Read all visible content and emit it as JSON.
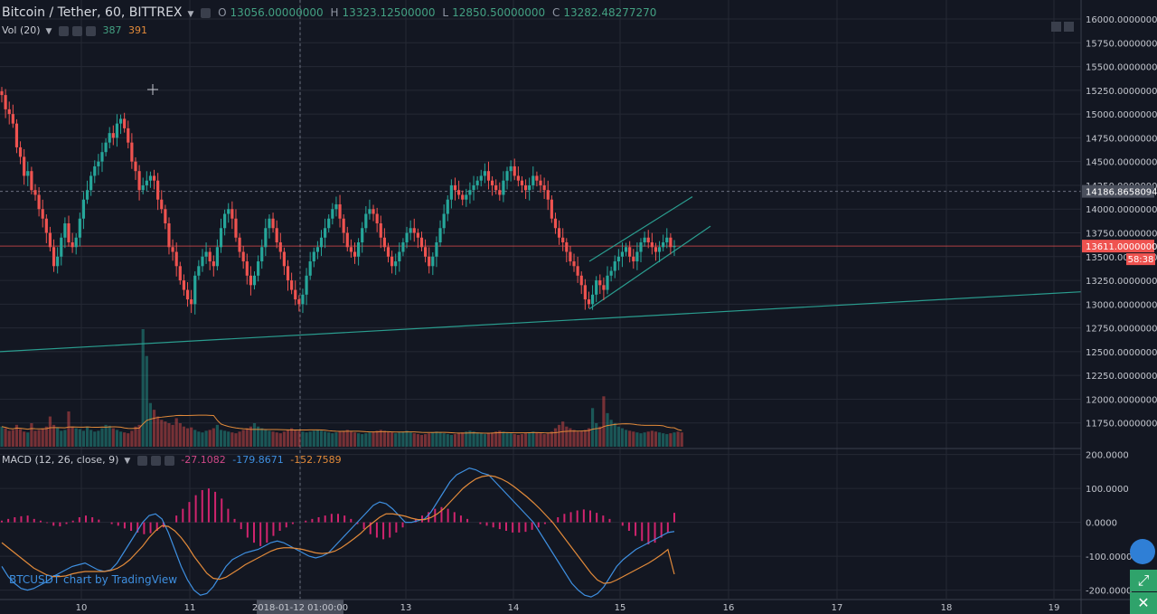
{
  "header": {
    "symbol": "Bitcoin / Tether, 60, BITTREX",
    "ohlc": [
      {
        "label": "O",
        "value": "13056.00000000"
      },
      {
        "label": "H",
        "value": "13323.12500000"
      },
      {
        "label": "L",
        "value": "12850.50000000"
      },
      {
        "label": "C",
        "value": "13282.48277270"
      }
    ],
    "vol_label": "Vol (20)",
    "vol_values": [
      "387",
      "391"
    ]
  },
  "macd_legend": {
    "label": "MACD (12, 26, close, 9)",
    "values": [
      "-27.1082",
      "-179.8671",
      "-152.7589"
    ]
  },
  "watermark": "BTCUSDT chart by TradingView",
  "colors": {
    "background": "#131722",
    "up": "#26a69a",
    "down": "#ef5350",
    "macd_line": "#3e8fe0",
    "signal_line": "#e28a3a",
    "histogram": "#d0246e",
    "trendline": "#2a9d8f"
  },
  "chart_data": [
    {
      "type": "candlestick",
      "title": "Bitcoin / Tether, 60, BITTREX",
      "ylim": [
        11500,
        16200
      ],
      "x_ticks": [
        "10",
        "11",
        "2018-01-12 01:00:00",
        "13",
        "14",
        "15",
        "16",
        "17",
        "18",
        "19"
      ],
      "y_ticks": [
        "16000.00000000",
        "15750.00000000",
        "15500.00000000",
        "15250.00000000",
        "15000.00000000",
        "14750.00000000",
        "14500.00000000",
        "14250.00000000",
        "14000.00000000",
        "13750.00000000",
        "13500.00000000",
        "13250.00000000",
        "13000.00000000",
        "12750.00000000",
        "12500.00000000",
        "12250.00000000",
        "12000.00000000",
        "11750.00000000"
      ],
      "price_labels": {
        "crosshair": "14186.86580944",
        "last_price": "13611.00000001",
        "countdown": "58:38"
      },
      "crosshair_price": 14186.8658,
      "last_price": 13611,
      "close_series": [
        15200,
        15050,
        15000,
        14900,
        14650,
        14550,
        14350,
        14400,
        14200,
        14150,
        14000,
        13900,
        13750,
        13600,
        13400,
        13500,
        13700,
        13850,
        13650,
        13600,
        13700,
        13900,
        14100,
        14200,
        14350,
        14450,
        14500,
        14600,
        14700,
        14800,
        14750,
        14900,
        14950,
        14850,
        14700,
        14500,
        14400,
        14200,
        14250,
        14300,
        14350,
        14300,
        14100,
        14000,
        13850,
        13600,
        13550,
        13400,
        13250,
        13150,
        13050,
        13000,
        13300,
        13400,
        13500,
        13550,
        13450,
        13400,
        13600,
        13800,
        13950,
        14000,
        13900,
        13700,
        13550,
        13450,
        13300,
        13200,
        13300,
        13450,
        13600,
        13800,
        13900,
        13800,
        13650,
        13550,
        13400,
        13250,
        13150,
        13050,
        13000,
        13100,
        13300,
        13450,
        13550,
        13600,
        13700,
        13800,
        13900,
        14000,
        14050,
        13900,
        13750,
        13600,
        13550,
        13500,
        13650,
        13800,
        13950,
        14000,
        13950,
        13850,
        13700,
        13600,
        13500,
        13400,
        13450,
        13550,
        13650,
        13750,
        13800,
        13750,
        13700,
        13600,
        13500,
        13400,
        13500,
        13650,
        13800,
        13950,
        14100,
        14250,
        14200,
        14150,
        14100,
        14150,
        14200,
        14250,
        14300,
        14350,
        14400,
        14300,
        14250,
        14200,
        14150,
        14300,
        14400,
        14450,
        14350,
        14300,
        14250,
        14200,
        14250,
        14350,
        14300,
        14250,
        14200,
        14100,
        13900,
        13800,
        13700,
        13650,
        13550,
        13450,
        13400,
        13300,
        13200,
        13050,
        13000,
        13100,
        13250,
        13200,
        13150,
        13300,
        13350,
        13450,
        13500,
        13550,
        13600,
        13500,
        13450,
        13550,
        13650,
        13700,
        13650,
        13600,
        13550,
        13600,
        13650,
        13700,
        13600,
        13611
      ],
      "volume": [
        120,
        110,
        95,
        100,
        130,
        105,
        90,
        85,
        140,
        95,
        100,
        110,
        120,
        180,
        130,
        115,
        95,
        100,
        210,
        120,
        110,
        105,
        95,
        120,
        100,
        90,
        95,
        110,
        130,
        125,
        110,
        100,
        90,
        85,
        80,
        95,
        120,
        130,
        700,
        540,
        260,
        220,
        180,
        160,
        150,
        140,
        130,
        170,
        140,
        120,
        110,
        115,
        100,
        90,
        85,
        95,
        100,
        110,
        130,
        100,
        95,
        90,
        85,
        80,
        90,
        100,
        110,
        120,
        140,
        120,
        110,
        100,
        95,
        90,
        85,
        80,
        90,
        100,
        110,
        100,
        95,
        90,
        85,
        90,
        95,
        100,
        95,
        90,
        85,
        80,
        85,
        90,
        95,
        100,
        90,
        85,
        80,
        75,
        80,
        85,
        90,
        95,
        100,
        95,
        90,
        85,
        80,
        85,
        90,
        95,
        85,
        80,
        75,
        70,
        75,
        80,
        85,
        90,
        85,
        80,
        75,
        70,
        75,
        80,
        85,
        90,
        95,
        90,
        85,
        80,
        75,
        80,
        85,
        90,
        95,
        90,
        85,
        80,
        75,
        70,
        75,
        80,
        85,
        90,
        85,
        80,
        75,
        80,
        90,
        110,
        130,
        150,
        120,
        110,
        100,
        90,
        95,
        100,
        110,
        230,
        140,
        120,
        300,
        200,
        160,
        140,
        120,
        110,
        100,
        95,
        90,
        85,
        80,
        85,
        90,
        95,
        90,
        85,
        80,
        75,
        80,
        85,
        90,
        85
      ]
    },
    {
      "type": "macd",
      "title": "MACD (12, 26, close, 9)",
      "ylim": [
        -225,
        215
      ],
      "y_ticks": [
        "200.0000",
        "100.0000",
        "0.0000",
        "-100.0000",
        "-200.0000"
      ],
      "series": [
        {
          "values": [
            -130,
            -160,
            -180,
            -195,
            -200,
            -195,
            -185,
            -175,
            -160,
            -150,
            -140,
            -130,
            -125,
            -120,
            -130,
            -140,
            -145,
            -140,
            -120,
            -90,
            -60,
            -30,
            0,
            20,
            25,
            10,
            -30,
            -80,
            -130,
            -170,
            -200,
            -215,
            -210,
            -190,
            -160,
            -130,
            -110,
            -100,
            -90,
            -85,
            -80,
            -70,
            -60,
            -55,
            -60,
            -70,
            -80,
            -90,
            -100,
            -105,
            -100,
            -90,
            -70,
            -50,
            -30,
            -10,
            10,
            30,
            50,
            60,
            55,
            40,
            20,
            0,
            0,
            5,
            10,
            30,
            60,
            90,
            120,
            140,
            150,
            160,
            155,
            145,
            140,
            120,
            100,
            80,
            60,
            40,
            20,
            0,
            -30,
            -60,
            -90,
            -120,
            -150,
            -180,
            -200,
            -215,
            -220,
            -210,
            -190,
            -160,
            -130,
            -110,
            -95,
            -80,
            -70,
            -60,
            -50,
            -40,
            -30,
            -27
          ]
        },
        {
          "values": [
            -60,
            -75,
            -90,
            -105,
            -120,
            -135,
            -145,
            -155,
            -160,
            -160,
            -158,
            -152,
            -148,
            -145,
            -145,
            -145,
            -145,
            -142,
            -136,
            -125,
            -110,
            -90,
            -70,
            -45,
            -25,
            -10,
            -12,
            -25,
            -45,
            -70,
            -100,
            -125,
            -150,
            -165,
            -168,
            -162,
            -150,
            -138,
            -125,
            -115,
            -105,
            -95,
            -85,
            -78,
            -75,
            -75,
            -77,
            -80,
            -85,
            -90,
            -92,
            -90,
            -85,
            -75,
            -62,
            -48,
            -33,
            -15,
            0,
            15,
            25,
            25,
            22,
            18,
            12,
            8,
            8,
            14,
            25,
            40,
            60,
            80,
            100,
            115,
            128,
            135,
            138,
            135,
            128,
            118,
            105,
            90,
            75,
            58,
            40,
            20,
            0,
            -25,
            -50,
            -75,
            -100,
            -125,
            -150,
            -170,
            -180,
            -178,
            -170,
            -160,
            -150,
            -140,
            -130,
            -120,
            -108,
            -95,
            -80,
            -153
          ]
        }
      ],
      "histogram": [
        5,
        10,
        15,
        18,
        20,
        10,
        5,
        -2,
        -10,
        -12,
        -5,
        5,
        15,
        20,
        15,
        8,
        0,
        -5,
        -10,
        -18,
        -25,
        -30,
        -35,
        -32,
        -25,
        -15,
        0,
        20,
        40,
        60,
        80,
        95,
        100,
        90,
        70,
        40,
        10,
        -20,
        -45,
        -60,
        -70,
        -60,
        -40,
        -25,
        -15,
        -5,
        0,
        5,
        10,
        15,
        20,
        25,
        25,
        20,
        10,
        -5,
        -20,
        -35,
        -45,
        -50,
        -45,
        -30,
        -15,
        0,
        10,
        20,
        30,
        40,
        45,
        40,
        30,
        20,
        10,
        0,
        -5,
        -10,
        -15,
        -20,
        -25,
        -30,
        -30,
        -28,
        -22,
        -15,
        -5,
        5,
        15,
        25,
        30,
        35,
        38,
        35,
        28,
        20,
        10,
        0,
        -10,
        -25,
        -40,
        -55,
        -65,
        -60,
        -45,
        -30,
        28
      ]
    }
  ]
}
